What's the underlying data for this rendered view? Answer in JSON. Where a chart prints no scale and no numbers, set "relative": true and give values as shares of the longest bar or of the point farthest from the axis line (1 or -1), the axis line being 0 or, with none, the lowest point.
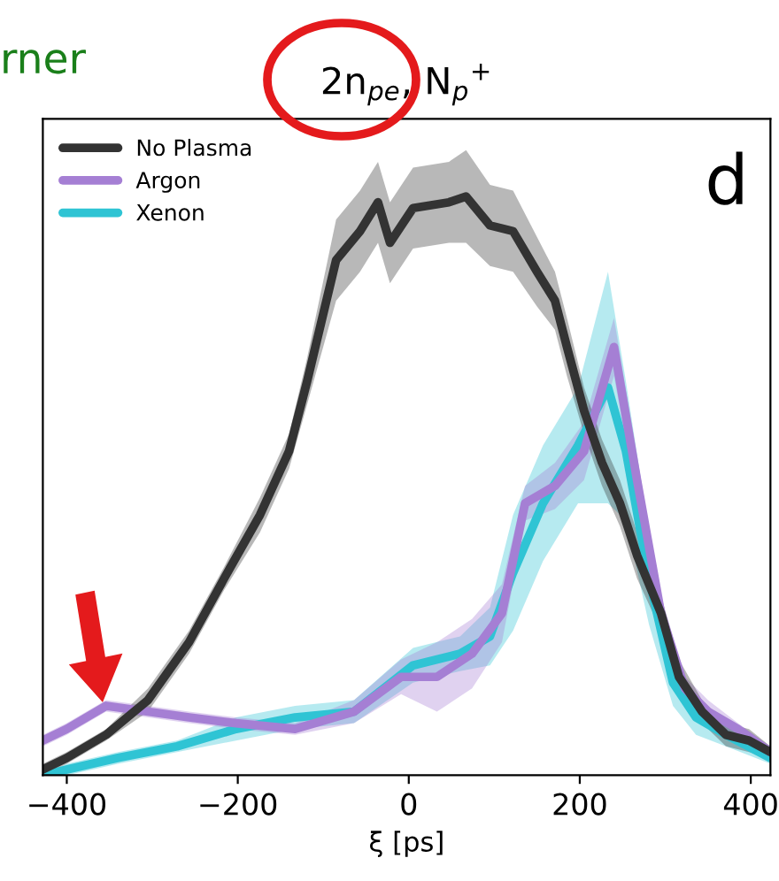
{
  "chart_data": {
    "type": "line",
    "title": "2n$_{pe}$, N$_{p}$$^{+}$",
    "xlabel": "ξ [ps]",
    "relative": true,
    "legend": "top left",
    "annotations": [
      "d",
      "rner"
    ],
    "xlim": [
      -428,
      423
    ],
    "xticks": [
      {
        "value": -400,
        "label": "−400"
      },
      {
        "value": -200,
        "label": "−200"
      },
      0,
      200,
      400
    ],
    "series": [
      {
        "name": "No Plasma",
        "color": "#333333",
        "x": [
          -428,
          -400,
          -354,
          -305,
          -257,
          -216,
          -174,
          -140,
          -119,
          -85,
          -57,
          -36,
          -22,
          5,
          47,
          67,
          95,
          122,
          150,
          171,
          185,
          205,
          226,
          247,
          267,
          295,
          316,
          343,
          371,
          398,
          423
        ],
        "values": [
          0.01,
          0.03,
          0.07,
          0.13,
          0.23,
          0.34,
          0.45,
          0.56,
          0.68,
          0.89,
          0.94,
          0.99,
          0.92,
          0.98,
          0.99,
          1.0,
          0.95,
          0.94,
          0.87,
          0.82,
          0.74,
          0.63,
          0.54,
          0.47,
          0.38,
          0.28,
          0.17,
          0.11,
          0.07,
          0.06,
          0.04
        ],
        "lower": [
          0.0,
          0.02,
          0.06,
          0.11,
          0.21,
          0.32,
          0.42,
          0.53,
          0.64,
          0.82,
          0.87,
          0.92,
          0.85,
          0.91,
          0.92,
          0.92,
          0.88,
          0.87,
          0.81,
          0.77,
          0.69,
          0.59,
          0.5,
          0.43,
          0.34,
          0.25,
          0.14,
          0.09,
          0.05,
          0.04,
          0.03
        ],
        "upper": [
          0.02,
          0.04,
          0.08,
          0.15,
          0.25,
          0.36,
          0.48,
          0.59,
          0.72,
          0.96,
          1.01,
          1.06,
          0.99,
          1.05,
          1.06,
          1.08,
          1.02,
          1.01,
          0.93,
          0.87,
          0.79,
          0.67,
          0.58,
          0.51,
          0.42,
          0.31,
          0.2,
          0.13,
          0.09,
          0.08,
          0.05
        ]
      },
      {
        "name": "Argon",
        "color": "#a57fd4",
        "x": [
          -428,
          -400,
          -354,
          -305,
          -257,
          -202,
          -133,
          -64,
          -9,
          33,
          74,
          109,
          136,
          171,
          205,
          240,
          267,
          295,
          323,
          350,
          385,
          423
        ],
        "values": [
          0.06,
          0.08,
          0.12,
          0.11,
          0.1,
          0.09,
          0.08,
          0.11,
          0.17,
          0.17,
          0.21,
          0.28,
          0.47,
          0.5,
          0.56,
          0.74,
          0.51,
          0.28,
          0.15,
          0.11,
          0.08,
          0.04
        ],
        "lower": [
          0.05,
          0.07,
          0.11,
          0.1,
          0.09,
          0.08,
          0.07,
          0.09,
          0.14,
          0.11,
          0.15,
          0.23,
          0.44,
          0.46,
          0.51,
          0.69,
          0.47,
          0.25,
          0.13,
          0.09,
          0.07,
          0.03
        ],
        "upper": [
          0.07,
          0.09,
          0.13,
          0.12,
          0.11,
          0.1,
          0.09,
          0.13,
          0.2,
          0.23,
          0.27,
          0.33,
          0.5,
          0.54,
          0.61,
          0.79,
          0.55,
          0.31,
          0.17,
          0.13,
          0.09,
          0.05
        ]
      },
      {
        "name": "Xenon",
        "color": "#2fc4d4",
        "x": [
          -428,
          -400,
          -340,
          -271,
          -202,
          -133,
          -64,
          5,
          60,
          95,
          122,
          157,
          198,
          233,
          254,
          281,
          309,
          336,
          371,
          423
        ],
        "values": [
          0.0,
          0.01,
          0.03,
          0.05,
          0.08,
          0.1,
          0.11,
          0.19,
          0.21,
          0.24,
          0.35,
          0.47,
          0.57,
          0.67,
          0.56,
          0.34,
          0.16,
          0.1,
          0.07,
          0.03
        ],
        "lower": [
          0.0,
          0.0,
          0.02,
          0.04,
          0.06,
          0.08,
          0.09,
          0.16,
          0.18,
          0.19,
          0.25,
          0.37,
          0.47,
          0.47,
          0.44,
          0.26,
          0.12,
          0.07,
          0.05,
          0.02
        ],
        "upper": [
          0.0,
          0.02,
          0.04,
          0.06,
          0.1,
          0.12,
          0.13,
          0.22,
          0.24,
          0.29,
          0.45,
          0.57,
          0.67,
          0.87,
          0.68,
          0.42,
          0.2,
          0.13,
          0.09,
          0.04
        ]
      }
    ]
  }
}
